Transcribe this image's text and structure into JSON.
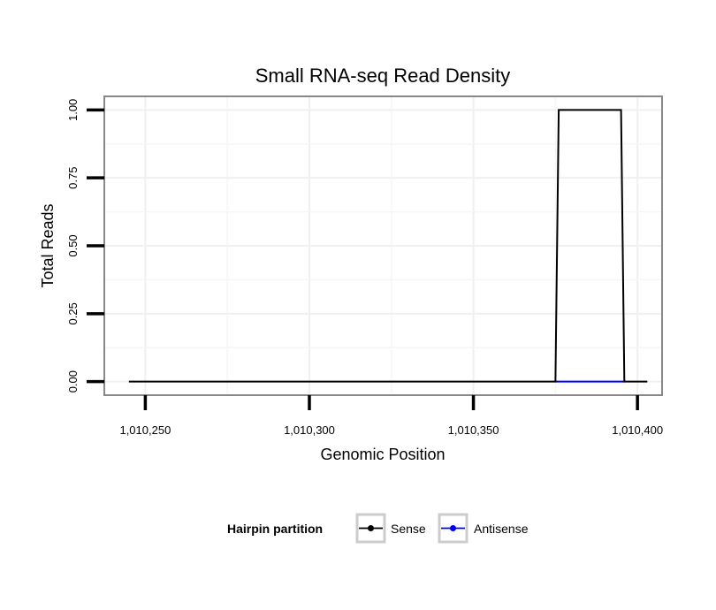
{
  "chart_data": {
    "type": "line",
    "title": "Small RNA-seq Read Density",
    "xlabel": "Genomic Position",
    "ylabel": "Total Reads",
    "xlim": [
      1010237.5,
      1010407.5
    ],
    "ylim": [
      -0.05,
      1.05
    ],
    "x_ticks": [
      1010250,
      1010300,
      1010350,
      1010400
    ],
    "x_tick_labels": [
      "1,010,250",
      "1,010,300",
      "1,010,350",
      "1,010,400"
    ],
    "y_ticks": [
      0,
      0.25,
      0.5,
      0.75,
      1.0
    ],
    "y_tick_labels": [
      "0.00",
      "0.25",
      "0.50",
      "0.75",
      "1.00"
    ],
    "grid": true,
    "legend_position": "bottom",
    "legend_title": "Hairpin partition",
    "series": [
      {
        "name": "Sense",
        "color": "#000000",
        "x": [
          1010245,
          1010375,
          1010376,
          1010395,
          1010396,
          1010403
        ],
        "y": [
          0,
          0,
          1,
          1,
          0,
          0
        ]
      },
      {
        "name": "Antisense",
        "color": "#0000ff",
        "x": [
          1010375,
          1010396
        ],
        "y": [
          0,
          0
        ]
      }
    ]
  }
}
